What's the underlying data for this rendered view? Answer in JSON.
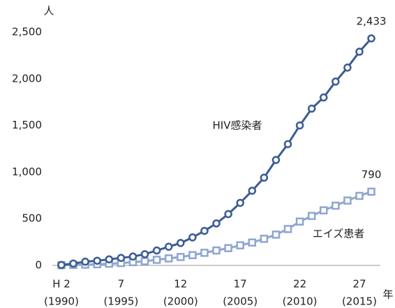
{
  "chart_data": {
    "type": "line",
    "y_unit": "人",
    "x_unit": "年",
    "categories": [
      "H 2",
      null,
      null,
      null,
      null,
      "7",
      null,
      null,
      null,
      null,
      "12",
      null,
      null,
      null,
      null,
      "17",
      null,
      null,
      null,
      null,
      "22",
      null,
      null,
      null,
      null,
      "27",
      null
    ],
    "category_years": [
      "(1990)",
      null,
      null,
      null,
      null,
      "(1995)",
      null,
      null,
      null,
      null,
      "(2000)",
      null,
      null,
      null,
      null,
      "(2005)",
      null,
      null,
      null,
      null,
      "(2010)",
      null,
      null,
      null,
      null,
      "(2015)",
      null
    ],
    "series": [
      {
        "name": "HIV感染者",
        "color": "#3b5b94",
        "marker": "circle",
        "values": [
          5,
          20,
          40,
          50,
          65,
          80,
          95,
          120,
          160,
          200,
          240,
          300,
          370,
          450,
          550,
          670,
          800,
          940,
          1130,
          1300,
          1500,
          1680,
          1800,
          1970,
          2120,
          2290,
          2433
        ],
        "value_labels": [
          null,
          null,
          null,
          null,
          null,
          null,
          null,
          null,
          null,
          null,
          null,
          null,
          null,
          null,
          null,
          null,
          null,
          null,
          null,
          null,
          null,
          null,
          null,
          null,
          null,
          null,
          "2,433"
        ]
      },
      {
        "name": "エイズ患者",
        "color": "#8ea6d0",
        "marker": "square",
        "values": [
          2,
          5,
          8,
          12,
          18,
          25,
          35,
          45,
          60,
          75,
          90,
          110,
          135,
          160,
          185,
          215,
          245,
          285,
          330,
          390,
          470,
          530,
          590,
          640,
          695,
          745,
          790
        ],
        "value_labels": [
          null,
          null,
          null,
          null,
          null,
          null,
          null,
          null,
          null,
          null,
          null,
          null,
          null,
          null,
          null,
          null,
          null,
          null,
          null,
          null,
          null,
          null,
          null,
          null,
          null,
          null,
          "790"
        ]
      }
    ],
    "ylim": [
      0,
      2500
    ],
    "yticks": [
      0,
      500,
      {
        "value": 1000,
        "label": "1,000"
      },
      {
        "value": 1500,
        "label": "1,500"
      },
      {
        "value": 2000,
        "label": "2,000"
      },
      {
        "value": 2500,
        "label": "2,500"
      }
    ]
  }
}
